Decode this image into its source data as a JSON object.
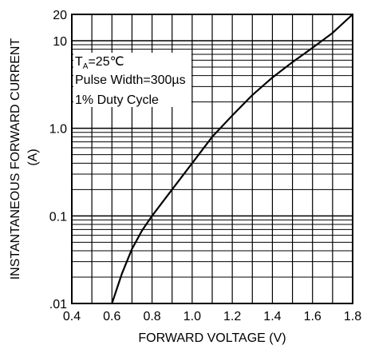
{
  "chart_data": {
    "type": "line",
    "title": "",
    "xlabel": "FORWARD VOLTAGE (V)",
    "ylabel_line1": "INSTANTANEOUS FORWARD CURRENT",
    "ylabel_line2": "(A)",
    "x_scale": "linear",
    "y_scale": "log",
    "xlim": [
      0.4,
      1.8
    ],
    "ylim": [
      0.01,
      20
    ],
    "x_ticks": [
      0.4,
      0.6,
      0.8,
      1.0,
      1.2,
      1.4,
      1.6,
      1.8
    ],
    "x_tick_labels": [
      "0.4",
      "0.6",
      "0.8",
      "1.0",
      "1.2",
      "1.4",
      "1.6",
      "1.8"
    ],
    "y_tick_labels": [
      {
        "value": 0.01,
        "label": ".01"
      },
      {
        "value": 0.1,
        "label": "0.1"
      },
      {
        "value": 1.0,
        "label": "1.0"
      },
      {
        "value": 10,
        "label": "10"
      },
      {
        "value": 20,
        "label": "20"
      }
    ],
    "grid": true,
    "annotations": {
      "temp_main": "T",
      "temp_sub": "A",
      "temp_rest": "=25℃",
      "pulse": "Pulse Width=300µs",
      "duty": "1% Duty Cycle"
    },
    "series": [
      {
        "x": [
          0.6,
          0.65,
          0.7,
          0.75,
          0.8,
          0.9,
          1.0,
          1.1,
          1.2,
          1.3,
          1.4,
          1.5,
          1.6,
          1.7,
          1.8
        ],
        "y": [
          0.01,
          0.022,
          0.042,
          0.068,
          0.1,
          0.2,
          0.4,
          0.8,
          1.4,
          2.4,
          3.8,
          5.7,
          8.3,
          12.3,
          20
        ]
      }
    ]
  }
}
